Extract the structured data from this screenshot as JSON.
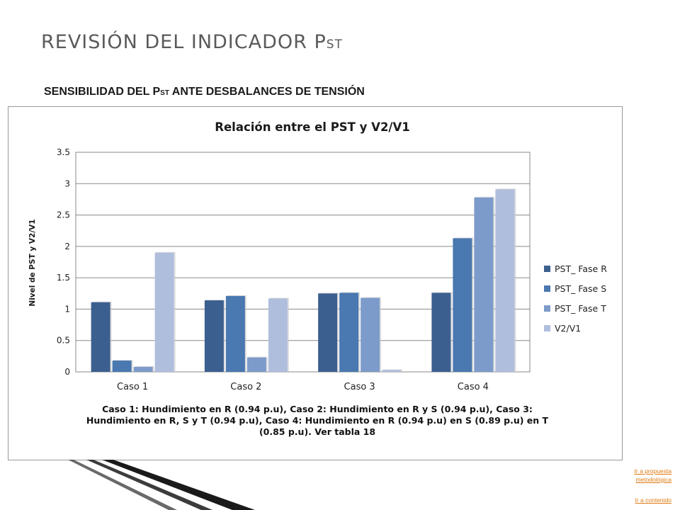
{
  "slide": {
    "title_main": "REVISIÓN DEL INDICADOR P",
    "title_sub": "ST",
    "subtitle_main": "SENSIBILIDAD DEL P",
    "subtitle_sub": "ST",
    "subtitle_rest": " ANTE DESBALANCES DE TENSIÓN"
  },
  "chart_data": {
    "type": "bar",
    "title": "Relación entre el PST y V2/V1",
    "ylabel": "Nivel de PST y V2/V1",
    "xlabel": "",
    "categories": [
      "Caso 1",
      "Caso 2",
      "Caso 3",
      "Caso 4"
    ],
    "series": [
      {
        "name": "PST_ Fase R",
        "values": [
          1.11,
          1.14,
          1.25,
          1.26
        ],
        "color": "#3b5f8f"
      },
      {
        "name": "PST_ Fase S",
        "values": [
          0.18,
          1.21,
          1.26,
          2.13
        ],
        "color": "#4a78b0"
      },
      {
        "name": "PST_ Fase T",
        "values": [
          0.08,
          0.23,
          1.18,
          2.78
        ],
        "color": "#7d9bca"
      },
      {
        "name": "V2/V1",
        "values": [
          1.9,
          1.17,
          0.03,
          2.91
        ],
        "color": "#b0bedd"
      }
    ],
    "ylim": [
      0,
      3.5
    ],
    "yticks": [
      "0",
      "0.5",
      "1",
      "1.5",
      "2",
      "2.5",
      "3",
      "3.5"
    ],
    "grid": true,
    "legend": "right",
    "caption": "Caso 1: Hundimiento en R (0.94 p.u), Caso 2: Hundimiento en R y S (0.94 p.u), Caso 3: Hundimiento en R, S y T (0.94 p.u), Caso 4: Hundimiento en R (0.94 p.u) en S (0.89 p.u) en T (0.85 p.u). Ver tabla 18"
  },
  "nav": {
    "propuesta": "Ir a propuesta metodológica",
    "contenido": "Ir a contenido"
  }
}
